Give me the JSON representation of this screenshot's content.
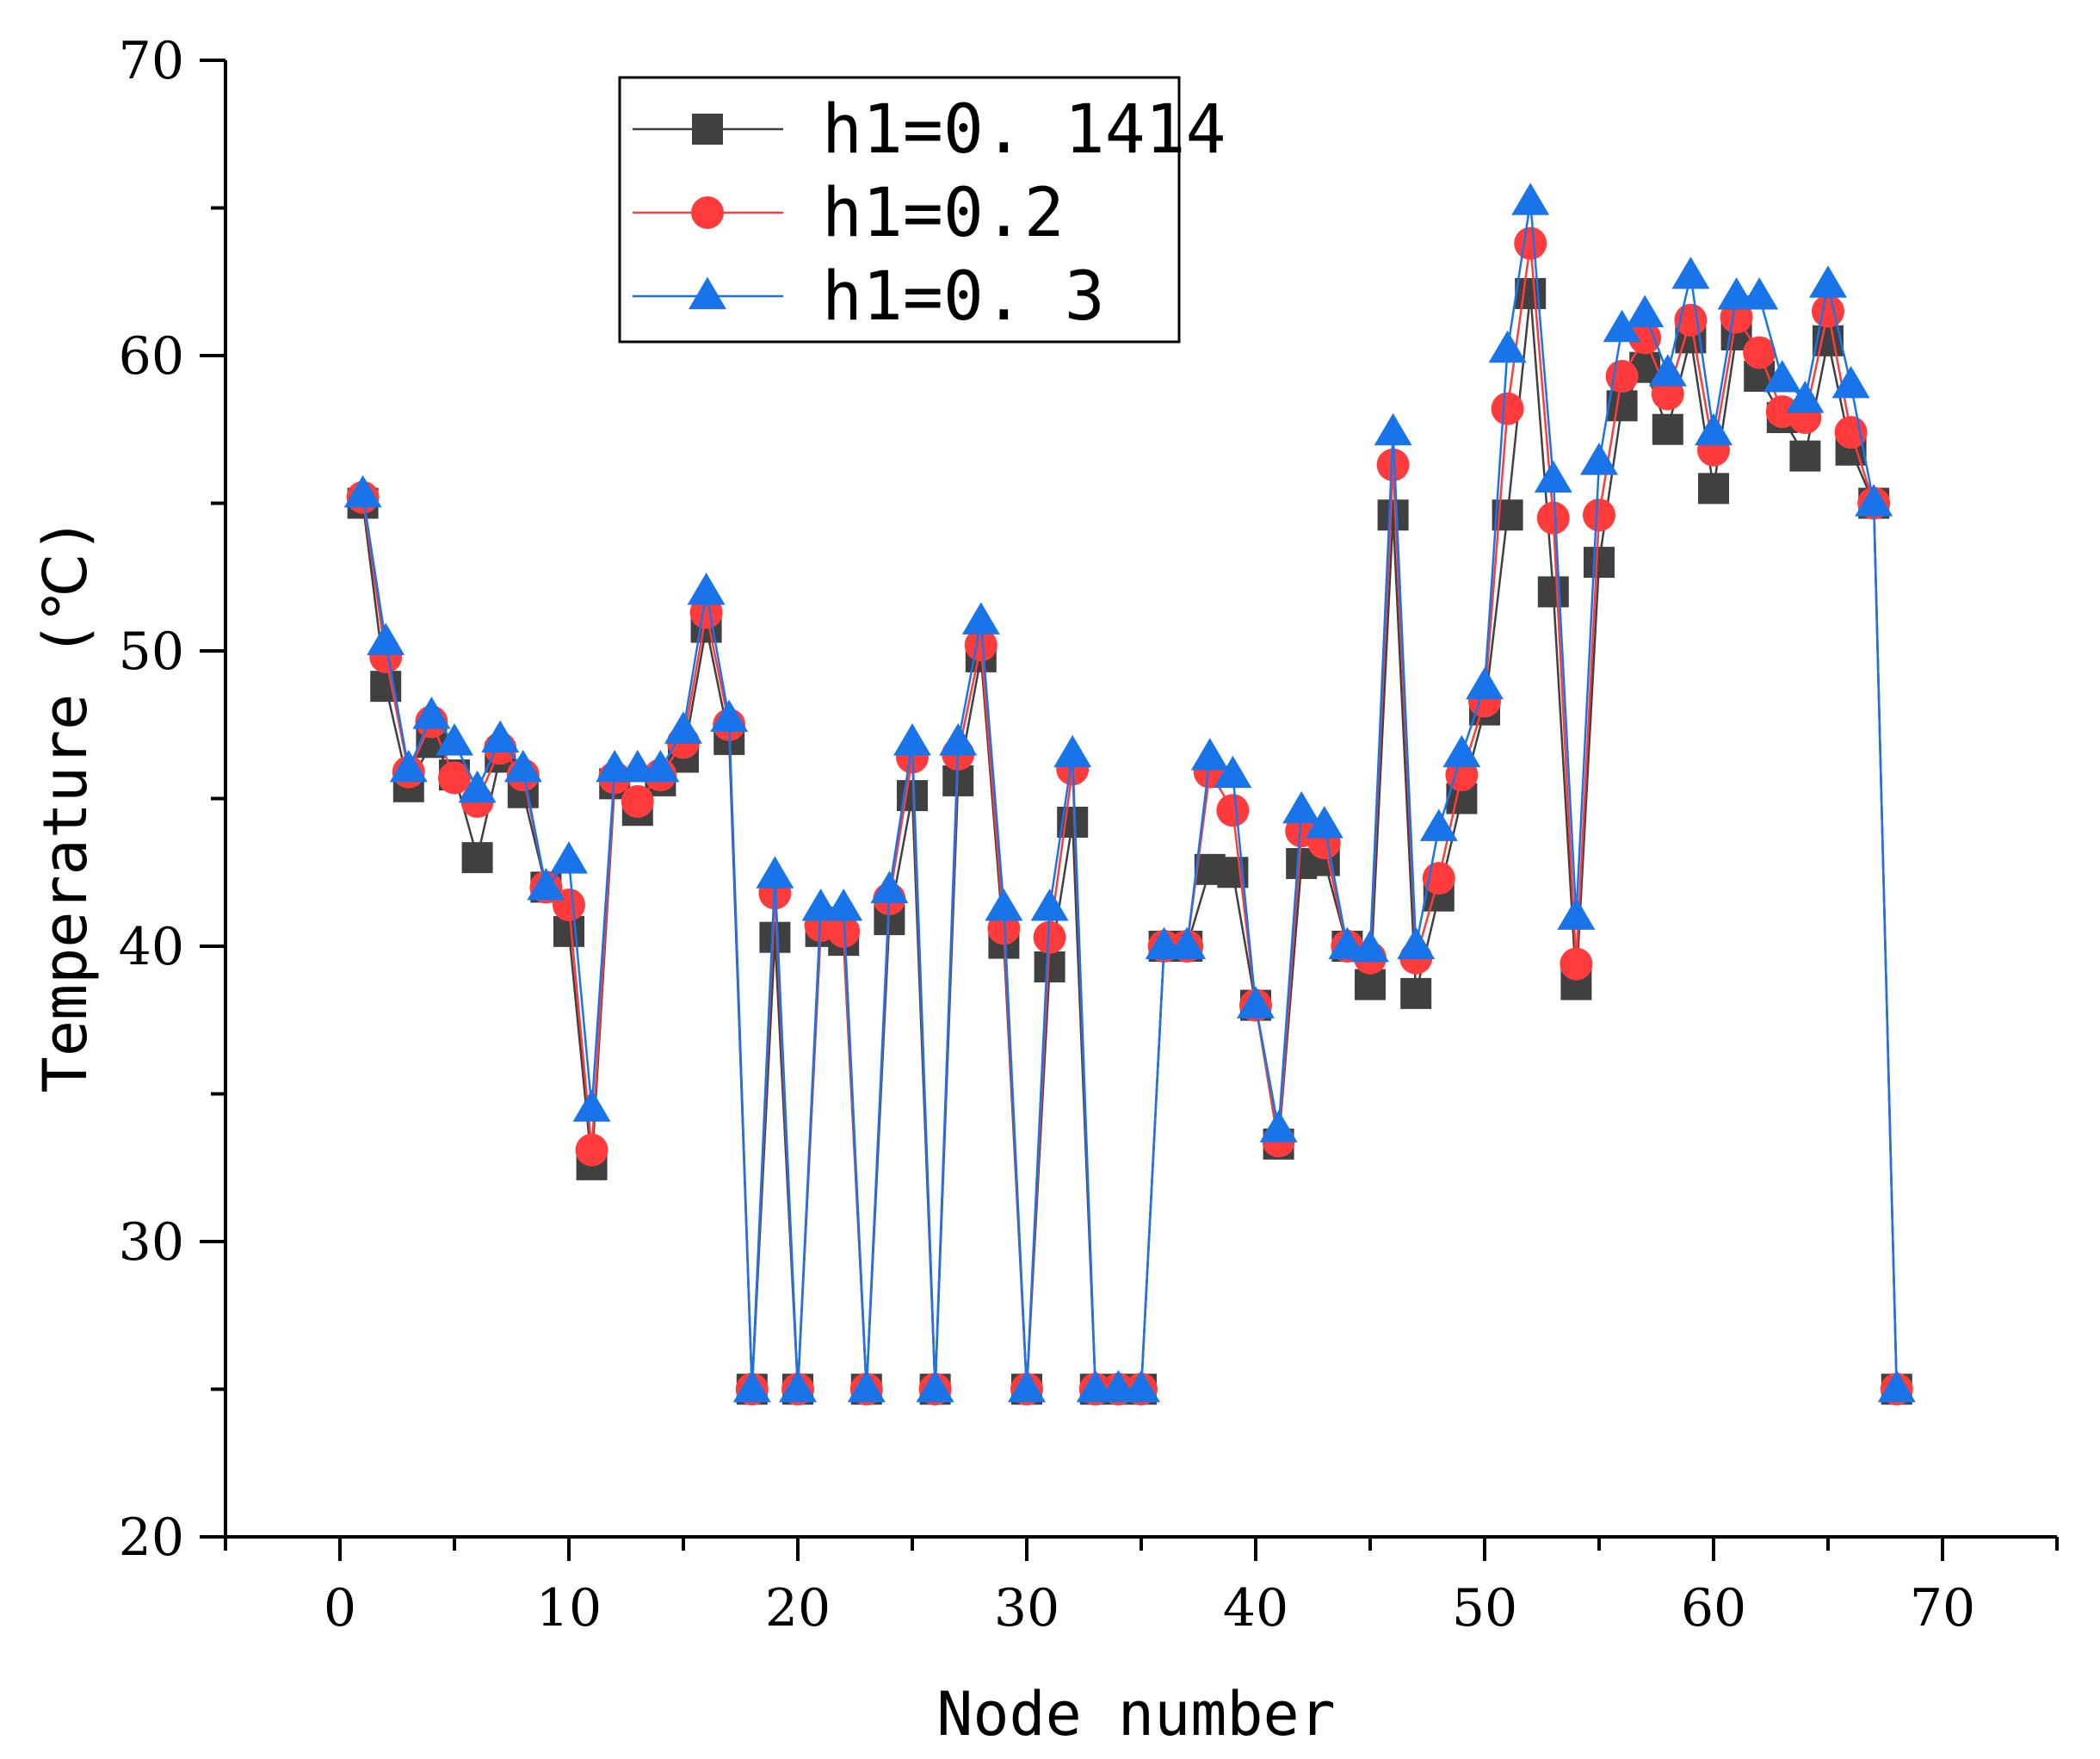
{
  "chart_data": {
    "type": "line",
    "xlabel": "Node number",
    "ylabel": "Temperature (℃)",
    "xlim": [
      -5,
      75
    ],
    "ylim": [
      20,
      70
    ],
    "xticks": [
      0,
      10,
      20,
      30,
      40,
      50,
      60,
      70
    ],
    "yticks": [
      20,
      30,
      40,
      50,
      60,
      70
    ],
    "legend_position": "top-center",
    "x": [
      1,
      2,
      3,
      4,
      5,
      6,
      7,
      8,
      9,
      10,
      11,
      12,
      13,
      14,
      15,
      16,
      17,
      18,
      19,
      20,
      21,
      22,
      23,
      24,
      25,
      26,
      27,
      28,
      29,
      30,
      31,
      32,
      33,
      34,
      35,
      36,
      37,
      38,
      39,
      40,
      41,
      42,
      43,
      44,
      45,
      46,
      47,
      48,
      49,
      50,
      51,
      52,
      53,
      54,
      55,
      56,
      57,
      58,
      59,
      60,
      61,
      62,
      63,
      64,
      65,
      66,
      67,
      68
    ],
    "series": [
      {
        "name": "h1=0. 1414",
        "color": "#404040",
        "marker": "square",
        "values": [
          55,
          48.8,
          45.4,
          46.9,
          45.8,
          43,
          46.4,
          45.2,
          42,
          40.5,
          32.6,
          45.5,
          44.6,
          45.6,
          46.4,
          50.8,
          47,
          25,
          40.3,
          25,
          40.5,
          40.2,
          25,
          40.9,
          45.1,
          25,
          45.6,
          49.8,
          40.1,
          25,
          39.3,
          44.2,
          25,
          25,
          25,
          40,
          40,
          42.6,
          42.5,
          38,
          33.3,
          42.8,
          42.9,
          40,
          38.7,
          54.6,
          38.4,
          41.7,
          45,
          48,
          54.6,
          62.1,
          52,
          38.7,
          53,
          58.3,
          59.6,
          57.5,
          60.6,
          55.5,
          60.7,
          59.3,
          57.9,
          56.6,
          60.5,
          56.8,
          55,
          25
        ]
      },
      {
        "name": "h1=0.2",
        "color": "#ff3b3b",
        "marker": "circle",
        "values": [
          55.2,
          49.8,
          45.9,
          47.6,
          45.7,
          44.9,
          46.7,
          45.8,
          42,
          41.4,
          33.1,
          45.7,
          44.9,
          45.8,
          46.9,
          51.3,
          47.5,
          25,
          41.8,
          25,
          40.7,
          40.5,
          25,
          41.6,
          46.4,
          25,
          46.5,
          50.2,
          40.6,
          25,
          40.3,
          46,
          25,
          25,
          25,
          40,
          40,
          45.9,
          44.6,
          38,
          33.4,
          43.9,
          43.5,
          40,
          39.6,
          56.3,
          39.6,
          42.3,
          45.8,
          48.3,
          58.2,
          63.8,
          54.5,
          39.4,
          54.6,
          59.3,
          60.6,
          58.7,
          61.2,
          56.8,
          61.3,
          60.1,
          58.1,
          57.9,
          61.5,
          57.4,
          55,
          25
        ]
      },
      {
        "name": "h1=0. 3",
        "color": "#1874e8",
        "marker": "triangle",
        "values": [
          55.3,
          50.3,
          46,
          47.8,
          46.9,
          45.3,
          47,
          46,
          42,
          42.9,
          34.5,
          46,
          46,
          46,
          47.3,
          52,
          47.7,
          25,
          42.4,
          25,
          41.3,
          41.3,
          25,
          41.9,
          46.9,
          25,
          46.9,
          51,
          41.3,
          25,
          41.3,
          46.5,
          25,
          25,
          25,
          40,
          40,
          46.4,
          45.8,
          38,
          33.8,
          44.6,
          44.1,
          40,
          39.9,
          57.4,
          40,
          44,
          46.5,
          48.8,
          60.2,
          65.2,
          55.8,
          41,
          56.4,
          60.9,
          61.4,
          59.4,
          62.7,
          57.4,
          62,
          62,
          59.2,
          58.5,
          62.4,
          59,
          55,
          25
        ]
      }
    ]
  }
}
